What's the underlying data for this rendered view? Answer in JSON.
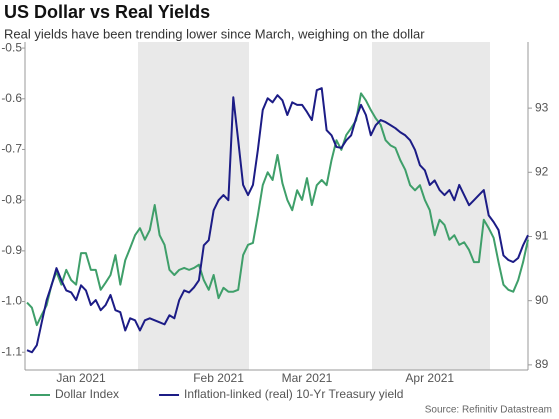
{
  "chart_data": {
    "type": "line",
    "title": "US Dollar vs Real Yields",
    "subtitle": "Real yields have been trending lower since March, weighing on the dollar",
    "source": "Source: Refinitiv Datastream",
    "legend": "bottom",
    "categories": [
      null,
      null,
      null,
      null,
      null,
      null,
      null,
      null,
      null,
      null,
      null,
      "Jan 2021",
      null,
      null,
      null,
      null,
      null,
      null,
      null,
      null,
      null,
      null,
      null,
      null,
      null,
      null,
      null,
      null,
      null,
      null,
      null,
      null,
      null,
      null,
      null,
      null,
      null,
      null,
      null,
      "Feb 2021",
      null,
      null,
      null,
      null,
      null,
      null,
      null,
      null,
      null,
      null,
      null,
      null,
      null,
      null,
      null,
      null,
      null,
      "Mar 2021",
      null,
      null,
      null,
      null,
      null,
      null,
      null,
      null,
      null,
      null,
      null,
      null,
      null,
      null,
      null,
      null,
      null,
      null,
      null,
      null,
      null,
      null,
      null,
      null,
      "Apr 2021",
      null,
      null,
      null,
      null,
      null,
      null,
      null,
      null,
      null,
      null,
      null,
      null,
      null,
      null,
      null,
      null,
      null,
      null,
      null,
      null
    ],
    "ylim": [
      -1.135,
      -0.488
    ],
    "yticks": [
      -0.5,
      -0.6,
      -0.7,
      -0.8,
      -0.9,
      {
        "value": -1,
        "label": "-1.0"
      },
      -1.1
    ],
    "y2lim": [
      88.92,
      94.03
    ],
    "y2ticks": [
      89,
      90,
      91,
      92,
      93
    ],
    "series": [
      {
        "name": "Dollar Index",
        "color": "#3f9f6a",
        "axis": "y2",
        "values": [
          89.97,
          89.89,
          89.62,
          89.78,
          89.93,
          90.25,
          90.45,
          90.25,
          90.48,
          90.32,
          90.25,
          90.74,
          90.74,
          90.48,
          90.48,
          90.17,
          90.28,
          90.4,
          90.71,
          90.25,
          90.63,
          90.82,
          91.02,
          91.13,
          90.95,
          91.1,
          91.49,
          91.02,
          90.87,
          90.48,
          90.4,
          90.48,
          90.51,
          90.48,
          90.51,
          90.56,
          90.32,
          90.17,
          90.4,
          90.04,
          90.2,
          90.14,
          90.14,
          90.17,
          90.71,
          90.87,
          90.9,
          91.33,
          91.8,
          92.0,
          91.88,
          92.27,
          91.83,
          91.57,
          91.41,
          91.72,
          91.57,
          91.91,
          91.49,
          91.8,
          91.88,
          91.8,
          92.19,
          92.5,
          92.35,
          92.58,
          92.69,
          92.81,
          93.23,
          93.12,
          92.97,
          92.84,
          92.74,
          92.5,
          92.42,
          92.38,
          92.19,
          92.04,
          91.8,
          91.72,
          91.8,
          91.57,
          91.41,
          91.02,
          91.26,
          91.18,
          90.95,
          91.02,
          90.87,
          90.91,
          90.79,
          90.6,
          90.6,
          91.26,
          91.13,
          90.98,
          90.6,
          90.25,
          90.17,
          90.14,
          90.32,
          90.6,
          90.95
        ]
      },
      {
        "name": "Inflation-linked (real) 10-Yr Treasury yield",
        "color": "#1c1c86",
        "values": [
          -1.096,
          -1.1,
          -1.086,
          -1.041,
          -0.997,
          -0.968,
          -0.934,
          -0.958,
          -0.978,
          -0.982,
          -0.997,
          -0.968,
          -0.978,
          -1.007,
          -0.997,
          -1.017,
          -1.007,
          -0.987,
          -1.017,
          -1.021,
          -1.057,
          -1.033,
          -1.037,
          -1.057,
          -1.037,
          -1.033,
          -1.037,
          -1.041,
          -1.045,
          -1.027,
          -1.033,
          -0.997,
          -0.978,
          -0.982,
          -0.972,
          -0.958,
          -0.889,
          -0.879,
          -0.82,
          -0.8,
          -0.79,
          -0.8,
          -0.597,
          -0.682,
          -0.77,
          -0.79,
          -0.77,
          -0.701,
          -0.622,
          -0.599,
          -0.607,
          -0.593,
          -0.603,
          -0.632,
          -0.607,
          -0.612,
          -0.612,
          -0.626,
          -0.642,
          -0.583,
          -0.579,
          -0.662,
          -0.672,
          -0.695,
          -0.697,
          -0.682,
          -0.672,
          -0.638,
          -0.612,
          -0.632,
          -0.672,
          -0.652,
          -0.642,
          -0.646,
          -0.652,
          -0.658,
          -0.666,
          -0.672,
          -0.682,
          -0.701,
          -0.731,
          -0.741,
          -0.77,
          -0.761,
          -0.78,
          -0.79,
          -0.78,
          -0.8,
          -0.77,
          -0.79,
          -0.81,
          -0.8,
          -0.79,
          -0.78,
          -0.83,
          -0.843,
          -0.859,
          -0.909,
          -0.918,
          -0.922,
          -0.914,
          -0.889,
          -0.869
        ]
      }
    ]
  }
}
